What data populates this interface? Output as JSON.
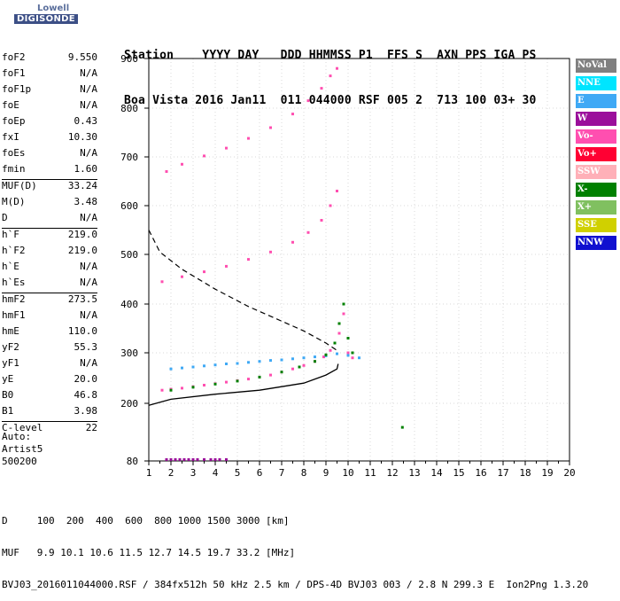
{
  "logo": {
    "line1": "Lowell",
    "line2": "DIGISONDE"
  },
  "header": {
    "line1": "Station    YYYY DAY   DDD HHMMSS P1  FFS S  AXN PPS IGA PS",
    "line2": "Boa Vista 2016 Jan11  011 044000 RSF 005 2  713 100 03+ 30"
  },
  "params": [
    {
      "k": "foF2",
      "v": "9.550"
    },
    {
      "k": "foF1",
      "v": "N/A"
    },
    {
      "k": "foF1p",
      "v": "N/A"
    },
    {
      "k": "foE",
      "v": "N/A"
    },
    {
      "k": "foEp",
      "v": "0.43"
    },
    {
      "k": "fxI",
      "v": "10.30"
    },
    {
      "k": "foEs",
      "v": "N/A"
    },
    {
      "k": "fmin",
      "v": "1.60"
    },
    {
      "k": "MUF(D)",
      "v": "33.24",
      "sep": true
    },
    {
      "k": "M(D)",
      "v": "3.48"
    },
    {
      "k": "D",
      "v": "N/A"
    },
    {
      "k": "h`F",
      "v": "219.0",
      "sep": true
    },
    {
      "k": "h`F2",
      "v": "219.0"
    },
    {
      "k": "h`E",
      "v": "N/A"
    },
    {
      "k": "h`Es",
      "v": "N/A"
    },
    {
      "k": "hmF2",
      "v": "273.5",
      "sep": true
    },
    {
      "k": "hmF1",
      "v": "N/A"
    },
    {
      "k": "hmE",
      "v": "110.0"
    },
    {
      "k": "yF2",
      "v": "55.3"
    },
    {
      "k": "yF1",
      "v": "N/A"
    },
    {
      "k": "yE",
      "v": "20.0"
    },
    {
      "k": "B0",
      "v": "46.8"
    },
    {
      "k": "B1",
      "v": "3.98"
    },
    {
      "k": "C-level",
      "v": "22",
      "sep": true
    }
  ],
  "auto": {
    "line1": "Auto:",
    "line2": "Artist5",
    "line3": "500200"
  },
  "legend": [
    {
      "label": "NoVal",
      "bg": "#808080",
      "fg": "#ffffff"
    },
    {
      "label": "NNE",
      "bg": "#00e5ff",
      "fg": "#ffffff"
    },
    {
      "label": "E",
      "bg": "#3fa9f5",
      "fg": "#ffffff"
    },
    {
      "label": "W",
      "bg": "#9b0f9b",
      "fg": "#ffffff"
    },
    {
      "label": "Vo-",
      "bg": "#ff4fb0",
      "fg": "#ffffff"
    },
    {
      "label": "Vo+",
      "bg": "#ff0033",
      "fg": "#ffffff"
    },
    {
      "label": "SSW",
      "bg": "#ffb0b8",
      "fg": "#ffffff"
    },
    {
      "label": "X-",
      "bg": "#008000",
      "fg": "#ffffff"
    },
    {
      "label": "X+",
      "bg": "#80c060",
      "fg": "#ffffff"
    },
    {
      "label": "SSE",
      "bg": "#d0d000",
      "fg": "#ffffff"
    },
    {
      "label": "NNW",
      "bg": "#1010d0",
      "fg": "#ffffff"
    }
  ],
  "bottom": {
    "line1": "D     100  200  400  600  800 1000 1500 3000 [km]",
    "line2": "MUF   9.9 10.1 10.6 11.5 12.7 14.5 19.7 33.2 [MHz]",
    "line3": "BVJ03_2016011044000.RSF / 384fx512h 50 kHz 2.5 km / DPS-4D BVJ03 003 / 2.8 N 299.3 E  Ion2Png 1.3.20"
  },
  "chart_data": {
    "type": "scatter",
    "x_ticks": [
      "1",
      "2",
      "3",
      "4",
      "5",
      "6",
      "7",
      "8",
      "9",
      "10",
      "11",
      "12",
      "13",
      "14",
      "15",
      "16",
      "17",
      "18",
      "19",
      "20"
    ],
    "y_ticks": [
      "80",
      "200",
      "300",
      "400",
      "500",
      "600",
      "700",
      "800",
      "900"
    ],
    "xlim": [
      1,
      20
    ],
    "ylim": [
      80,
      900
    ],
    "series": [
      {
        "name": "Vo-",
        "color": "#ff4fb0",
        "x": [
          1.6,
          2.0,
          2.5,
          3.0,
          3.5,
          4.0,
          4.5,
          5.0,
          5.5,
          6.0,
          6.5,
          7.0,
          7.5,
          8.0,
          8.5,
          8.9,
          9.2,
          9.4,
          9.6,
          9.8,
          10.0,
          10.2
        ],
        "y": [
          226,
          228,
          230,
          233,
          236,
          239,
          242,
          245,
          248,
          252,
          256,
          262,
          268,
          275,
          283,
          292,
          305,
          320,
          340,
          380,
          300,
          290
        ]
      },
      {
        "name": "E",
        "color": "#3fa9f5",
        "x": [
          2.0,
          2.5,
          3.0,
          3.5,
          4.0,
          4.5,
          5.0,
          5.5,
          6.0,
          6.5,
          7.0,
          7.5,
          8.0,
          8.5,
          9.0,
          9.5,
          10.0,
          10.5
        ],
        "y": [
          268,
          270,
          272,
          274,
          276,
          278,
          279,
          281,
          283,
          285,
          286,
          288,
          290,
          292,
          294,
          298,
          295,
          290
        ]
      },
      {
        "name": "X-",
        "color": "#008000",
        "x": [
          2.0,
          3.0,
          4.0,
          5.0,
          6.0,
          7.0,
          7.8,
          8.5,
          9.0,
          9.4,
          9.6,
          9.8,
          10.0,
          10.2,
          12.45
        ],
        "y": [
          226,
          232,
          238,
          244,
          252,
          262,
          272,
          283,
          296,
          320,
          360,
          400,
          330,
          300,
          150
        ]
      },
      {
        "name": "W",
        "color": "#9b0f9b",
        "x": [
          1.8,
          2.0,
          2.2,
          2.4,
          2.6,
          2.8,
          3.0,
          3.2,
          3.5,
          3.8,
          4.0,
          4.2,
          4.5
        ],
        "y": [
          83,
          83,
          83,
          83,
          83,
          83,
          83,
          83,
          83,
          83,
          83,
          83,
          83
        ]
      },
      {
        "name": "Vo-",
        "color": "#ff4fb0",
        "x": [
          1.6,
          2.5,
          3.5,
          4.5,
          5.5,
          6.5,
          7.5,
          8.2,
          8.8,
          9.2,
          9.5
        ],
        "y": [
          445,
          455,
          465,
          476,
          490,
          505,
          525,
          545,
          570,
          600,
          630
        ]
      },
      {
        "name": "Vo-",
        "color": "#ff4fb0",
        "x": [
          1.8,
          2.5,
          3.5,
          4.5,
          5.5,
          6.5,
          7.5,
          8.2,
          8.8,
          9.2,
          9.5
        ],
        "y": [
          670,
          685,
          702,
          718,
          738,
          760,
          788,
          815,
          840,
          865,
          880
        ]
      }
    ],
    "trace_solid": {
      "x": [
        1.0,
        2.0,
        4.0,
        6.0,
        8.0,
        9.0,
        9.5,
        9.55
      ],
      "y": [
        196,
        208,
        218,
        226,
        240,
        256,
        268,
        278
      ]
    },
    "trace_dashed": {
      "x": [
        1.0,
        1.5,
        2.5,
        4.0,
        5.5,
        7.0,
        8.0,
        9.0,
        9.5
      ],
      "y": [
        550,
        505,
        470,
        430,
        395,
        365,
        345,
        320,
        305
      ]
    }
  }
}
